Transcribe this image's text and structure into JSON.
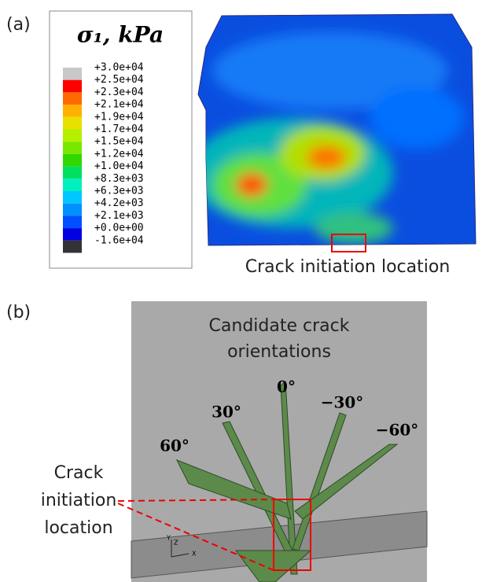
{
  "panel_a": {
    "label": "(a)",
    "legend": {
      "title": "σ₁, kPa",
      "levels": [
        "+3.0e+04",
        "+2.5e+04",
        "+2.3e+04",
        "+2.1e+04",
        "+1.9e+04",
        "+1.7e+04",
        "+1.5e+04",
        "+1.2e+04",
        "+1.0e+04",
        "+8.3e+03",
        "+6.3e+03",
        "+4.2e+03",
        "+2.1e+03",
        "+0.0e+00",
        "-1.6e+04"
      ],
      "colors": [
        "#c8c8c8",
        "#ff0000",
        "#ff6a00",
        "#ffb000",
        "#e8e000",
        "#b4f000",
        "#78e800",
        "#30d800",
        "#00e060",
        "#00f0c0",
        "#00c8ff",
        "#0090ff",
        "#0050ff",
        "#0000e0",
        "#333333"
      ]
    },
    "annotation": "Crack initiation location"
  },
  "panel_b": {
    "label": "(b)",
    "title_lines": [
      "Candidate crack",
      "orientations"
    ],
    "angles": [
      "0°",
      "30°",
      "−30°",
      "60°",
      "−60°"
    ],
    "annotation_lines": [
      "Crack",
      "initiation",
      "location"
    ],
    "triad": [
      "Y",
      "Z",
      "X"
    ]
  }
}
